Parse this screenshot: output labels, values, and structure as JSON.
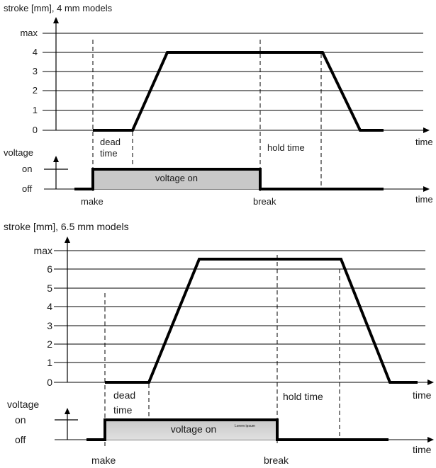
{
  "diagrams": [
    {
      "stroke_label": "stroke [mm], 4 mm models",
      "stroke_ticks": [
        "max",
        "4",
        "3",
        "2",
        "1",
        "0"
      ],
      "voltage_label": "voltage",
      "voltage_ticks": [
        "on",
        "off"
      ],
      "time_label": "time",
      "dead_time_line1": "dead",
      "dead_time_line2": "time",
      "hold_time_label": "hold time",
      "voltage_on_label": "voltage on",
      "make_label": "make",
      "break_label": "break"
    },
    {
      "stroke_label": "stroke [mm], 6.5 mm models",
      "stroke_ticks": [
        "max",
        "6",
        "5",
        "4",
        "3",
        "2",
        "1",
        "0"
      ],
      "voltage_label": "voltage",
      "voltage_ticks": [
        "on",
        "off"
      ],
      "time_label": "time",
      "dead_time_line1": "dead",
      "dead_time_line2": "time",
      "hold_time_label": "hold time",
      "voltage_on_label": "voltage on",
      "voltage_note": "Lorem ipsum",
      "make_label": "make",
      "break_label": "break"
    }
  ],
  "colors": {
    "voltage_on_fill_top": "#c8c8c8",
    "voltage_on_fill_bottom": "#dcdcdc",
    "line": "#000000"
  }
}
